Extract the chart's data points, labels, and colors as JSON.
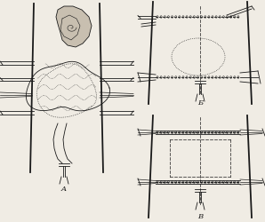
{
  "bg_color": "#f0ece4",
  "line_color": "#1a1a1a",
  "label_A": "A",
  "label_B": "Б",
  "label_V": "В",
  "fig_width": 2.98,
  "fig_height": 2.51,
  "dpi": 100
}
